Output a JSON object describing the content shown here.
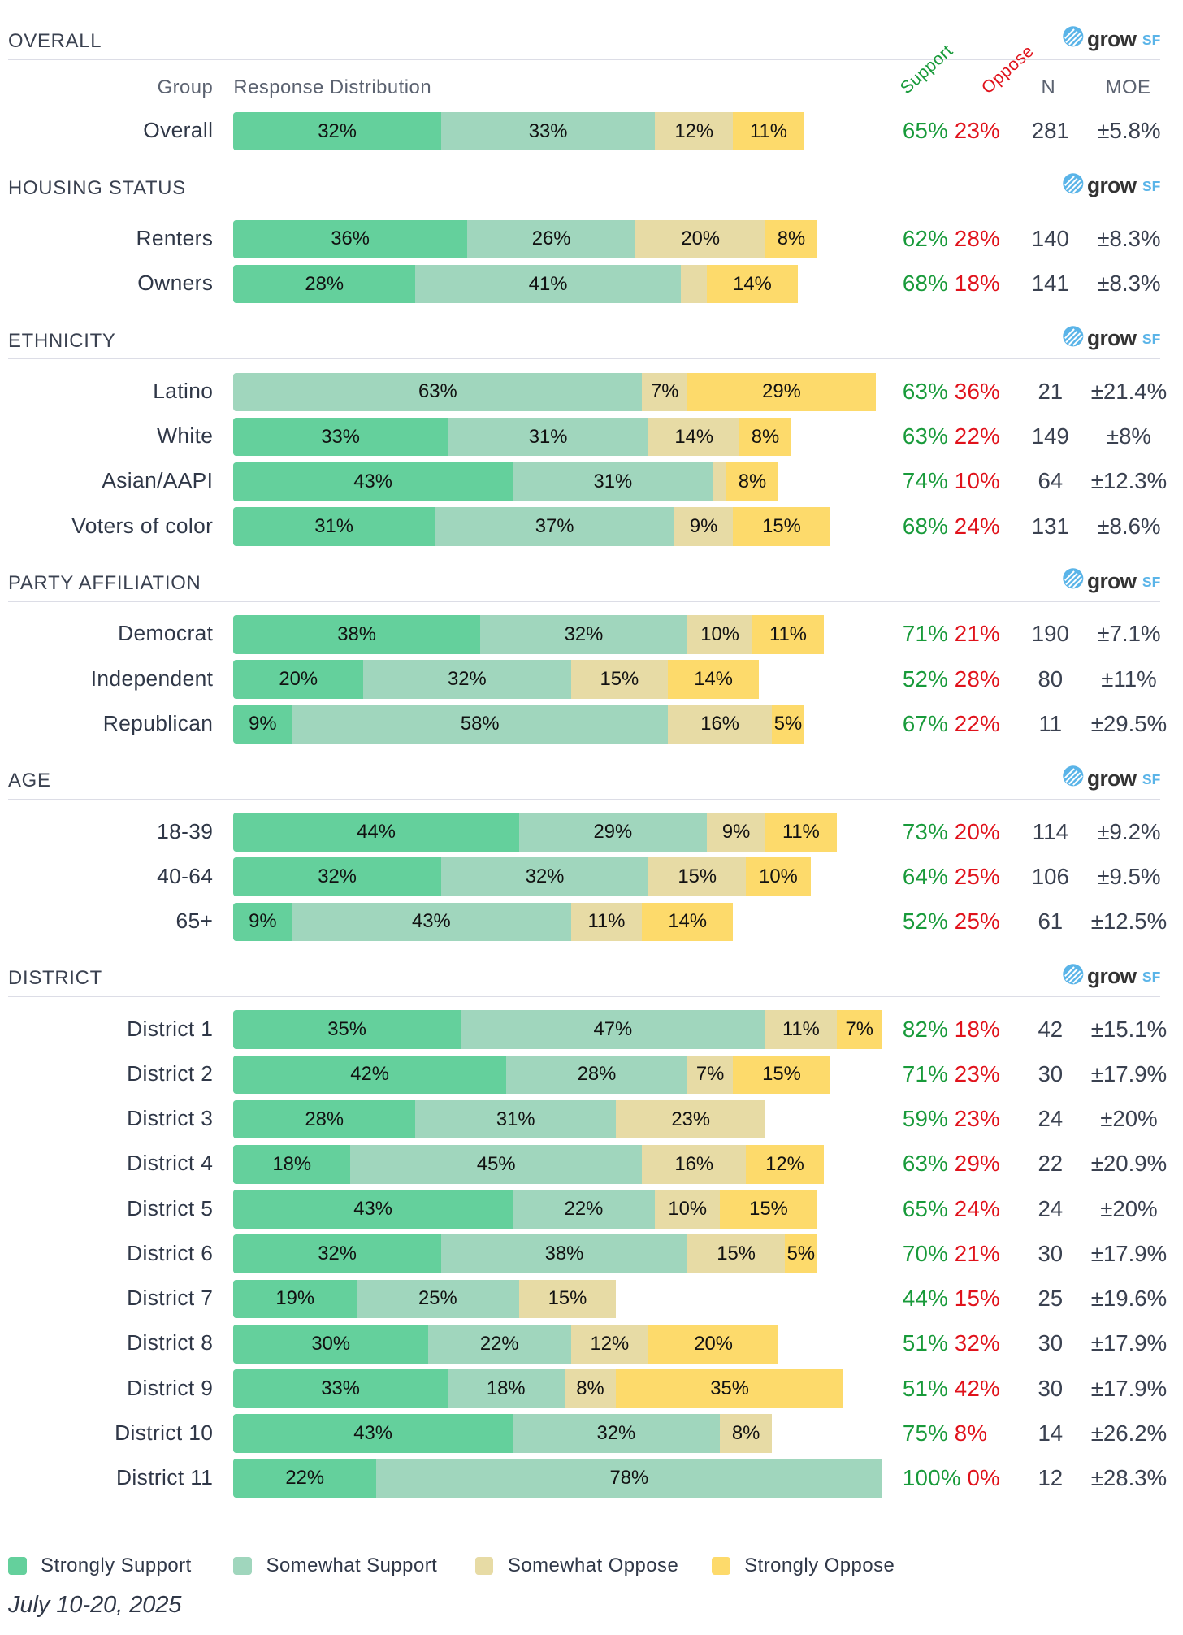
{
  "columns": {
    "group": "Group",
    "distribution": "Response Distribution",
    "support": "Support",
    "oppose": "Oppose",
    "n": "N",
    "moe": "MOE"
  },
  "logo": {
    "text": "grow",
    "suffix": "SF"
  },
  "colors": {
    "strongly_support": "#64d09c",
    "somewhat_support": "#a0d6bd",
    "somewhat_oppose": "#e7dba5",
    "strongly_oppose": "#fdda6b",
    "support_text": "#189a3a",
    "oppose_text": "#e0121b"
  },
  "legend": [
    "Strongly Support",
    "Somewhat Support",
    "Somewhat Oppose",
    "Strongly Oppose"
  ],
  "date": "July 10-20, 2025",
  "chart_data": {
    "type": "bar",
    "stacked": true,
    "orientation": "horizontal",
    "series_names": [
      "Strongly Support",
      "Somewhat Support",
      "Somewhat Oppose",
      "Strongly Oppose"
    ],
    "xlim": [
      0,
      100
    ],
    "sections": [
      {
        "title": "OVERALL",
        "rows": [
          {
            "label": "Overall",
            "values": [
              32,
              33,
              12,
              11
            ],
            "support": "65%",
            "oppose": "23%",
            "n": "281",
            "moe": "±5.8%"
          }
        ]
      },
      {
        "title": "HOUSING STATUS",
        "rows": [
          {
            "label": "Renters",
            "values": [
              36,
              26,
              20,
              8
            ],
            "support": "62%",
            "oppose": "28%",
            "n": "140",
            "moe": "±8.3%"
          },
          {
            "label": "Owners",
            "values": [
              28,
              41,
              4,
              14
            ],
            "support": "68%",
            "oppose": "18%",
            "n": "141",
            "moe": "±8.3%"
          }
        ]
      },
      {
        "title": "ETHNICITY",
        "rows": [
          {
            "label": "Latino",
            "values": [
              0,
              63,
              7,
              29
            ],
            "support": "63%",
            "oppose": "36%",
            "n": "21",
            "moe": "±21.4%"
          },
          {
            "label": "White",
            "values": [
              33,
              31,
              14,
              8
            ],
            "support": "63%",
            "oppose": "22%",
            "n": "149",
            "moe": "±8%"
          },
          {
            "label": "Asian/AAPI",
            "values": [
              43,
              31,
              2,
              8
            ],
            "support": "74%",
            "oppose": "10%",
            "n": "64",
            "moe": "±12.3%"
          },
          {
            "label": "Voters of color",
            "values": [
              31,
              37,
              9,
              15
            ],
            "support": "68%",
            "oppose": "24%",
            "n": "131",
            "moe": "±8.6%"
          }
        ]
      },
      {
        "title": "PARTY AFFILIATION",
        "rows": [
          {
            "label": "Democrat",
            "values": [
              38,
              32,
              10,
              11
            ],
            "support": "71%",
            "oppose": "21%",
            "n": "190",
            "moe": "±7.1%"
          },
          {
            "label": "Independent",
            "values": [
              20,
              32,
              15,
              14
            ],
            "support": "52%",
            "oppose": "28%",
            "n": "80",
            "moe": "±11%"
          },
          {
            "label": "Republican",
            "values": [
              9,
              58,
              16,
              5
            ],
            "support": "67%",
            "oppose": "22%",
            "n": "11",
            "moe": "±29.5%"
          }
        ]
      },
      {
        "title": "AGE",
        "rows": [
          {
            "label": "18-39",
            "values": [
              44,
              29,
              9,
              11
            ],
            "support": "73%",
            "oppose": "20%",
            "n": "114",
            "moe": "±9.2%"
          },
          {
            "label": "40-64",
            "values": [
              32,
              32,
              15,
              10
            ],
            "support": "64%",
            "oppose": "25%",
            "n": "106",
            "moe": "±9.5%"
          },
          {
            "label": "65+",
            "values": [
              9,
              43,
              11,
              14
            ],
            "support": "52%",
            "oppose": "25%",
            "n": "61",
            "moe": "±12.5%"
          }
        ]
      },
      {
        "title": "DISTRICT",
        "rows": [
          {
            "label": "District 1",
            "values": [
              35,
              47,
              11,
              7
            ],
            "support": "82%",
            "oppose": "18%",
            "n": "42",
            "moe": "±15.1%"
          },
          {
            "label": "District 2",
            "values": [
              42,
              28,
              7,
              15
            ],
            "support": "71%",
            "oppose": "23%",
            "n": "30",
            "moe": "±17.9%"
          },
          {
            "label": "District 3",
            "values": [
              28,
              31,
              23,
              0
            ],
            "support": "59%",
            "oppose": "23%",
            "n": "24",
            "moe": "±20%"
          },
          {
            "label": "District 4",
            "values": [
              18,
              45,
              16,
              12
            ],
            "support": "63%",
            "oppose": "29%",
            "n": "22",
            "moe": "±20.9%"
          },
          {
            "label": "District 5",
            "values": [
              43,
              22,
              10,
              15
            ],
            "support": "65%",
            "oppose": "24%",
            "n": "24",
            "moe": "±20%"
          },
          {
            "label": "District 6",
            "values": [
              32,
              38,
              15,
              5
            ],
            "support": "70%",
            "oppose": "21%",
            "n": "30",
            "moe": "±17.9%"
          },
          {
            "label": "District 7",
            "values": [
              19,
              25,
              15,
              0
            ],
            "support": "44%",
            "oppose": "15%",
            "n": "25",
            "moe": "±19.6%"
          },
          {
            "label": "District 8",
            "values": [
              30,
              22,
              12,
              20
            ],
            "support": "51%",
            "oppose": "32%",
            "n": "30",
            "moe": "±17.9%"
          },
          {
            "label": "District 9",
            "values": [
              33,
              18,
              8,
              35
            ],
            "support": "51%",
            "oppose": "42%",
            "n": "30",
            "moe": "±17.9%"
          },
          {
            "label": "District 10",
            "values": [
              43,
              32,
              8,
              0
            ],
            "support": "75%",
            "oppose": "8%",
            "n": "14",
            "moe": "±26.2%"
          },
          {
            "label": "District 11",
            "values": [
              22,
              78,
              0,
              0
            ],
            "support": "100%",
            "oppose": "0%",
            "n": "12",
            "moe": "±28.3%"
          }
        ]
      }
    ]
  }
}
